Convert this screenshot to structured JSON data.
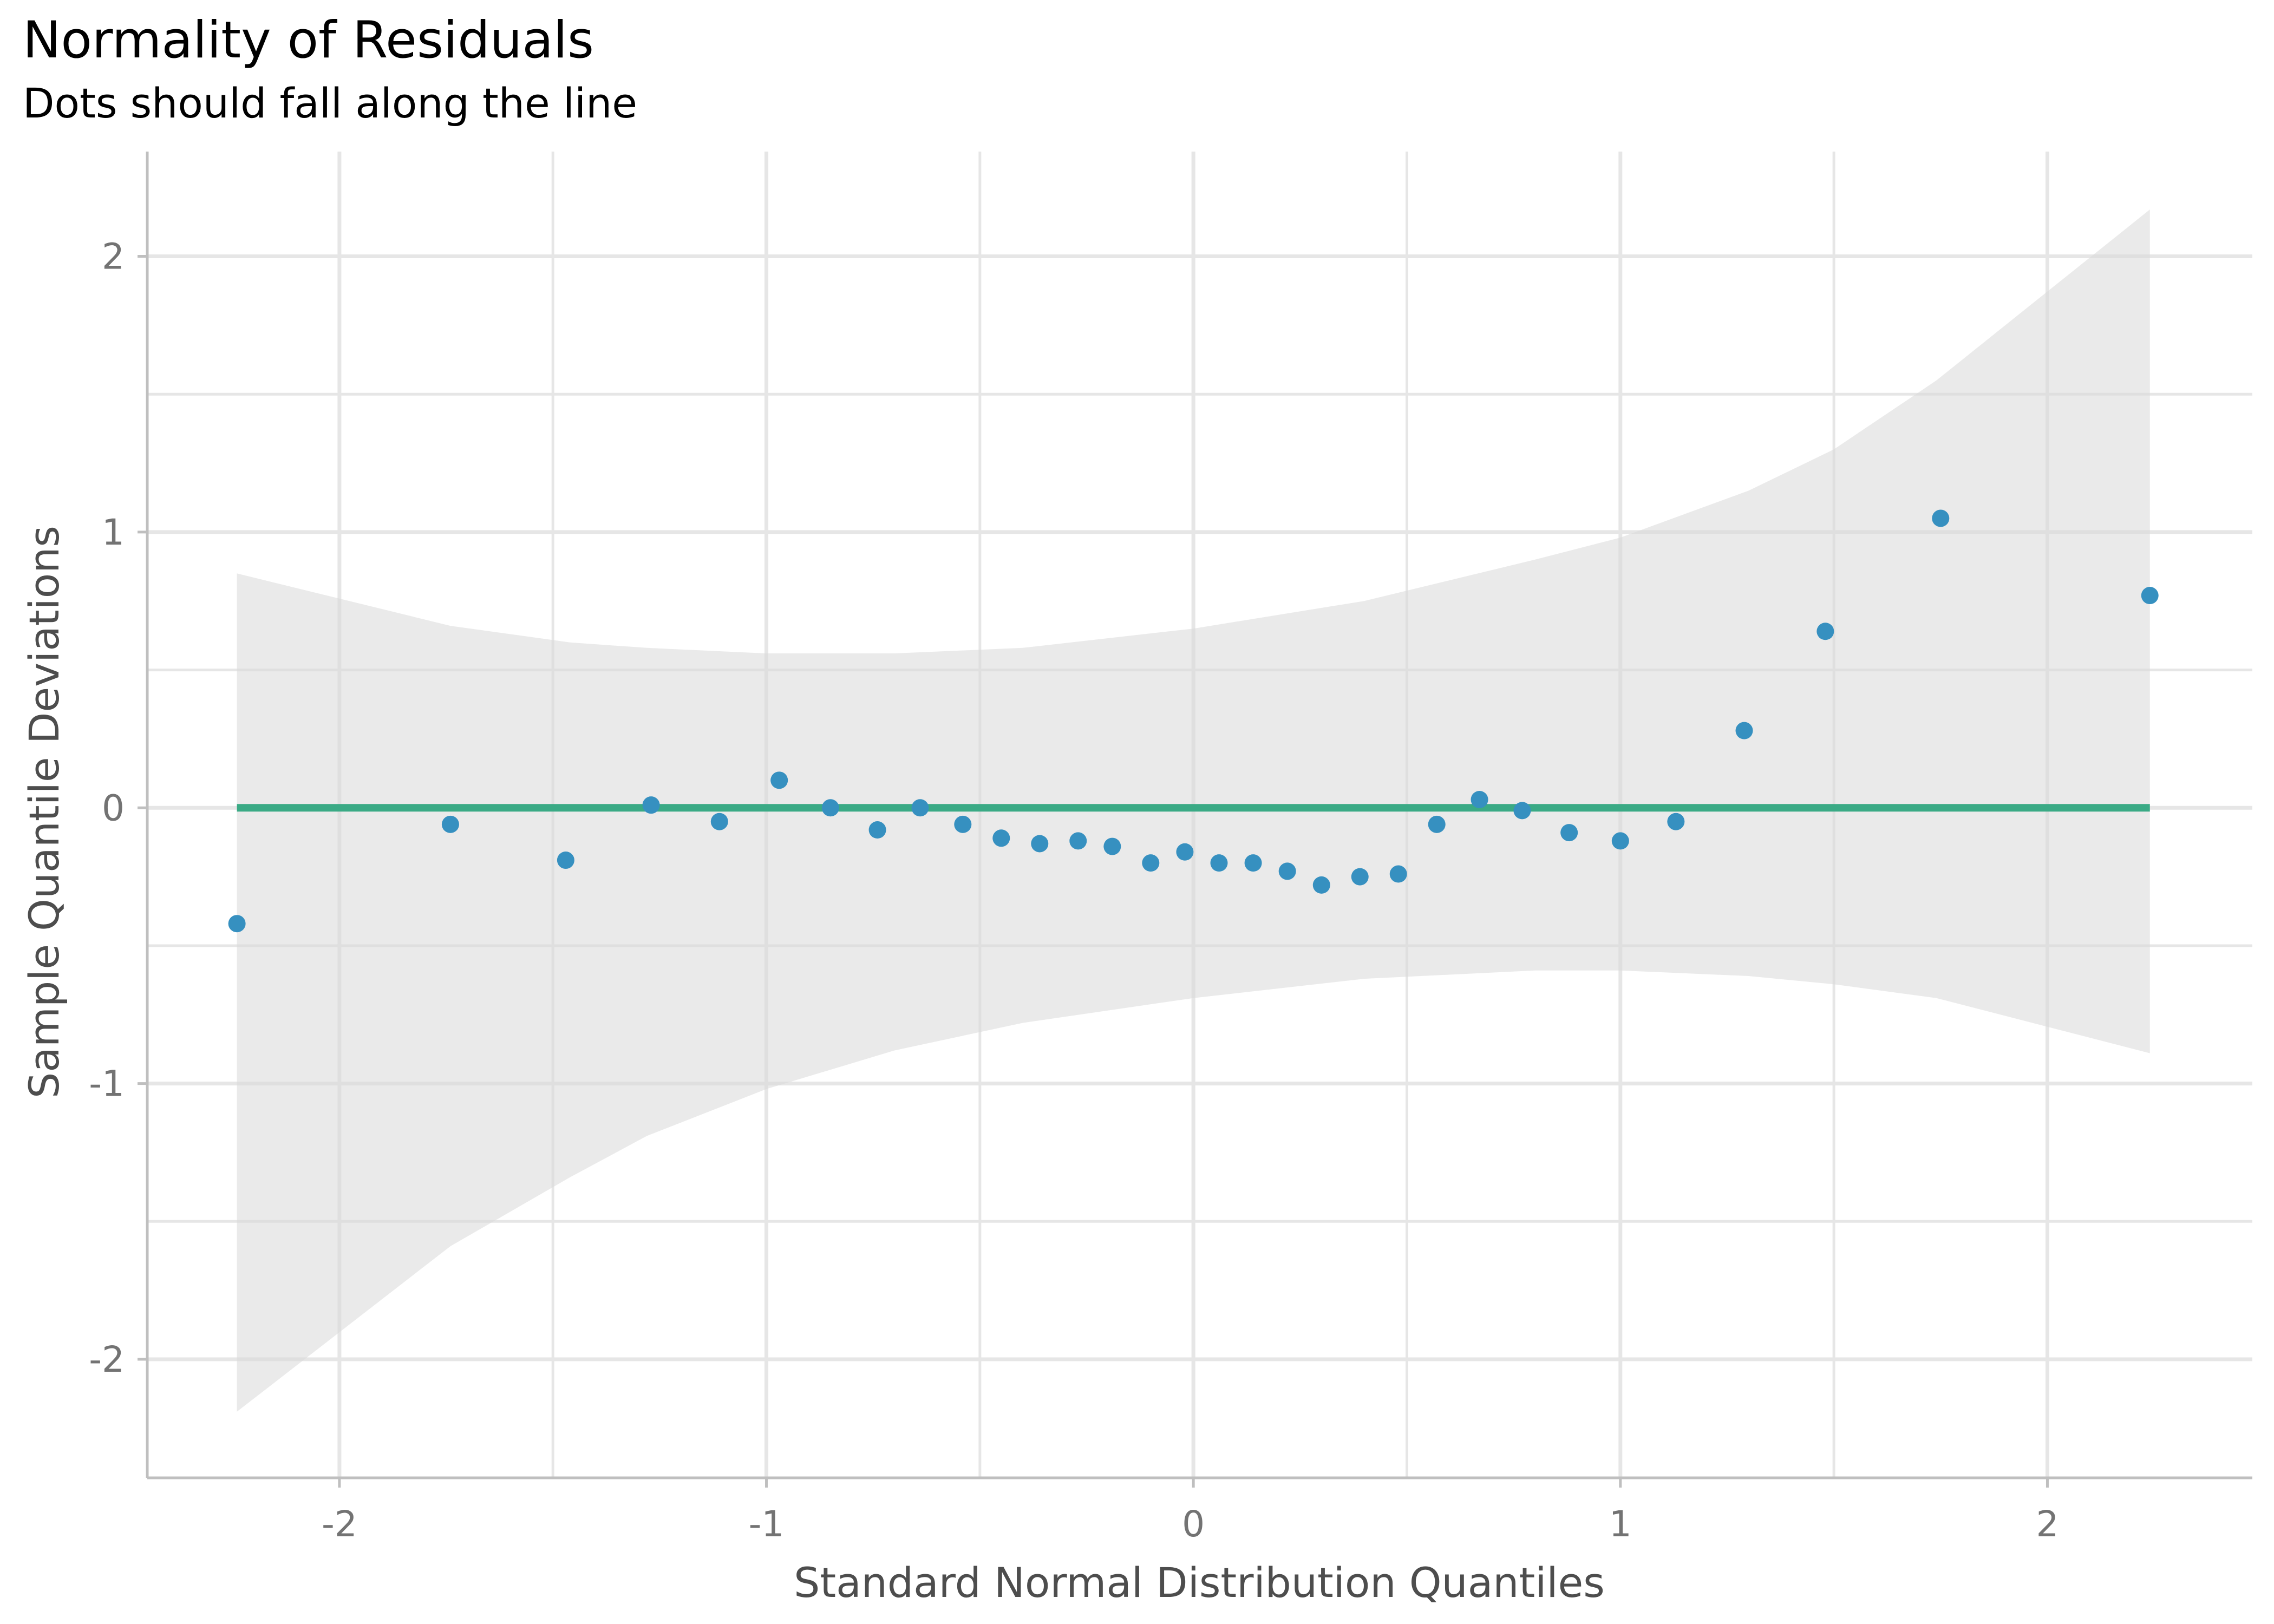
{
  "chart_data": {
    "type": "scatter",
    "title": "Normality of Residuals",
    "subtitle": "Dots should fall along the line",
    "xlabel": "Standard Normal Distribution Quantiles",
    "ylabel": "Sample Quantile Deviations",
    "xlim": [
      -2.45,
      2.48
    ],
    "ylim": [
      -2.43,
      2.38
    ],
    "x_ticks": [
      -2,
      -1,
      0,
      1,
      2
    ],
    "x_tick_labels": [
      "-2",
      "-1",
      "0",
      "1",
      "2"
    ],
    "y_ticks": [
      -2,
      -1,
      0,
      1,
      2
    ],
    "y_tick_labels": [
      "-2",
      "-1",
      "0",
      "1",
      "2"
    ],
    "grid": true,
    "colors": {
      "points": "#3690c0",
      "reference_line": "#3aaa85",
      "confidence_band": "#e5e5e5",
      "grid": "#e6e6e6",
      "axis": "#bfbfbf",
      "tick_text": "#737373",
      "axis_title": "#4d4d4d"
    },
    "reference_line": {
      "x": [
        -2.24,
        2.24
      ],
      "y": [
        0,
        0
      ]
    },
    "confidence_band": {
      "x": [
        -2.24,
        -1.74,
        -1.46,
        -1.28,
        -1.0,
        -0.7,
        -0.4,
        0.0,
        0.4,
        0.8,
        1.0,
        1.3,
        1.5,
        1.74,
        2.24
      ],
      "upper": [
        0.85,
        0.66,
        0.6,
        0.58,
        0.56,
        0.56,
        0.58,
        0.65,
        0.75,
        0.9,
        0.98,
        1.15,
        1.3,
        1.55,
        2.17
      ],
      "lower": [
        -2.19,
        -1.59,
        -1.34,
        -1.19,
        -1.02,
        -0.88,
        -0.78,
        -0.69,
        -0.62,
        -0.59,
        -0.59,
        -0.61,
        -0.64,
        -0.69,
        -0.89
      ]
    },
    "points": {
      "x": [
        -2.24,
        -1.74,
        -1.47,
        -1.27,
        -1.11,
        -0.97,
        -0.85,
        -0.74,
        -0.64,
        -0.54,
        -0.45,
        -0.36,
        -0.27,
        -0.19,
        -0.1,
        -0.02,
        0.06,
        0.14,
        0.22,
        0.3,
        0.39,
        0.48,
        0.57,
        0.67,
        0.77,
        0.88,
        1.0,
        1.13,
        1.29,
        1.48,
        1.75,
        2.24
      ],
      "y": [
        -0.42,
        -0.06,
        -0.19,
        0.01,
        -0.05,
        0.1,
        0.0,
        -0.08,
        0.0,
        -0.06,
        -0.11,
        -0.13,
        -0.12,
        -0.14,
        -0.2,
        -0.16,
        -0.2,
        -0.2,
        -0.23,
        -0.28,
        -0.25,
        -0.24,
        -0.06,
        0.03,
        -0.01,
        -0.09,
        -0.12,
        -0.05,
        0.28,
        0.64,
        1.05,
        0.77
      ]
    }
  }
}
